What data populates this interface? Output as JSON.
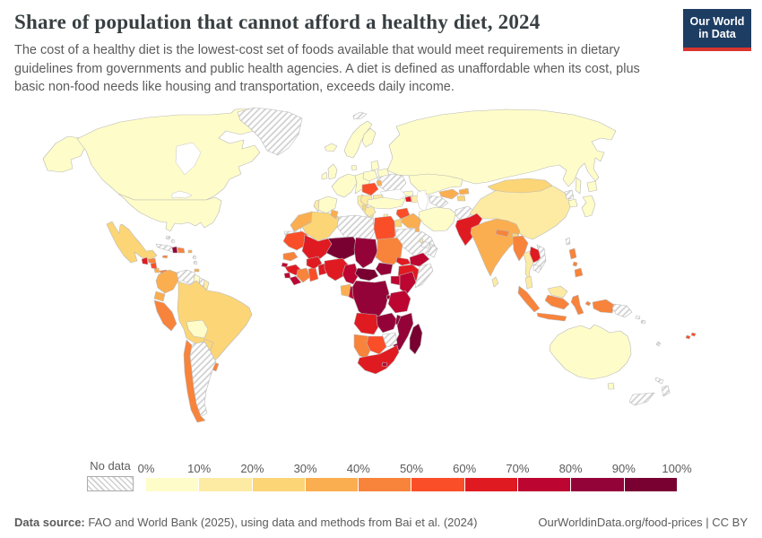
{
  "header": {
    "title": "Share of population that cannot afford a healthy diet, 2024",
    "subtitle": "The cost of a healthy diet is the lowest-cost set of foods available that would meet requirements in dietary guidelines from governments and public health agencies. A diet is defined as unaffordable when its cost, plus basic non-food needs like housing and transportation, exceeds daily income.",
    "logo_line1": "Our World",
    "logo_line2": "in Data"
  },
  "legend": {
    "no_data_label": "No data",
    "tick_labels": [
      "0%",
      "10%",
      "20%",
      "30%",
      "40%",
      "50%",
      "60%",
      "70%",
      "80%",
      "90%",
      "100%"
    ]
  },
  "footer": {
    "source_label": "Data source:",
    "source_text": " FAO and World Bank (2025), using data and methods from Bai et al. (2024)",
    "link_text": "OurWorldinData.org/food-prices",
    "separator": " | ",
    "license_text": "CC BY"
  },
  "chart_data": {
    "type": "choropleth",
    "title": "Share of population that cannot afford a healthy diet, 2024",
    "year": 2024,
    "unit": "%",
    "legend_position": "bottom",
    "no_data_style": "diagonal-hatch",
    "bins": [
      {
        "range": "0-10%",
        "color": "#fefcc8"
      },
      {
        "range": "10-20%",
        "color": "#fdeba4"
      },
      {
        "range": "20-30%",
        "color": "#fcd577"
      },
      {
        "range": "30-40%",
        "color": "#fbae50"
      },
      {
        "range": "40-50%",
        "color": "#f8833b"
      },
      {
        "range": "50-60%",
        "color": "#fa4e29"
      },
      {
        "range": "60-70%",
        "color": "#e01a21"
      },
      {
        "range": "70-80%",
        "color": "#bc0531"
      },
      {
        "range": "80-90%",
        "color": "#940338"
      },
      {
        "range": "90-100%",
        "color": "#790132"
      }
    ],
    "countries": [
      {
        "name": "United States",
        "bin": "0-10%"
      },
      {
        "name": "Canada",
        "bin": "0-10%"
      },
      {
        "name": "Greenland",
        "bin": "No data"
      },
      {
        "name": "Svalbard",
        "bin": "No data"
      },
      {
        "name": "Mexico",
        "bin": "20-30%"
      },
      {
        "name": "Guatemala",
        "bin": "60-70%"
      },
      {
        "name": "Honduras",
        "bin": "40-50%"
      },
      {
        "name": "Nicaragua",
        "bin": "50-60%"
      },
      {
        "name": "Costa Rica",
        "bin": "30-40%"
      },
      {
        "name": "Panama",
        "bin": "40-50%"
      },
      {
        "name": "Cuba",
        "bin": "No data"
      },
      {
        "name": "Jamaica",
        "bin": "40-50%"
      },
      {
        "name": "Haiti",
        "bin": "80-90%"
      },
      {
        "name": "Dominican Republic",
        "bin": "40-50%"
      },
      {
        "name": "Puerto Rico",
        "bin": "30-40%"
      },
      {
        "name": "Bahamas",
        "bin": "No data"
      },
      {
        "name": "Lesser Antilles",
        "bin": "No data"
      },
      {
        "name": "Trinidad and Tobago",
        "bin": "30-40%"
      },
      {
        "name": "Colombia",
        "bin": "30-40%"
      },
      {
        "name": "Venezuela",
        "bin": "No data"
      },
      {
        "name": "Guyana",
        "bin": "0-10%"
      },
      {
        "name": "Suriname",
        "bin": "No data"
      },
      {
        "name": "French Guiana",
        "bin": "10-20%"
      },
      {
        "name": "Ecuador",
        "bin": "30-40%"
      },
      {
        "name": "Peru",
        "bin": "40-50%"
      },
      {
        "name": "Brazil",
        "bin": "20-30%"
      },
      {
        "name": "Bolivia",
        "bin": "0-10%"
      },
      {
        "name": "Paraguay",
        "bin": "20-30%"
      },
      {
        "name": "Uruguay",
        "bin": "40-50%"
      },
      {
        "name": "Chile",
        "bin": "40-50%"
      },
      {
        "name": "Argentina",
        "bin": "No data"
      },
      {
        "name": "Iceland",
        "bin": "0-10%"
      },
      {
        "name": "United Kingdom",
        "bin": "0-10%"
      },
      {
        "name": "Ireland",
        "bin": "0-10%"
      },
      {
        "name": "Norway & Sweden",
        "bin": "0-10%"
      },
      {
        "name": "Finland",
        "bin": "0-10%"
      },
      {
        "name": "Denmark",
        "bin": "0-10%"
      },
      {
        "name": "France",
        "bin": "0-10%"
      },
      {
        "name": "Germany",
        "bin": "0-10%"
      },
      {
        "name": "Spain",
        "bin": "0-10%"
      },
      {
        "name": "Portugal",
        "bin": "10-20%"
      },
      {
        "name": "Italy",
        "bin": "10-20%"
      },
      {
        "name": "Poland",
        "bin": "0-10%"
      },
      {
        "name": "Baltic States",
        "bin": "0-10%"
      },
      {
        "name": "Belarus",
        "bin": "0-10%"
      },
      {
        "name": "Ukraine",
        "bin": "No data"
      },
      {
        "name": "Romania",
        "bin": "50-60%"
      },
      {
        "name": "Moldova",
        "bin": "30-40%"
      },
      {
        "name": "Balkans",
        "bin": "10-20%"
      },
      {
        "name": "Albania",
        "bin": "20-30%"
      },
      {
        "name": "Bulgaria",
        "bin": "10-20%"
      },
      {
        "name": "Greece",
        "bin": "10-20%"
      },
      {
        "name": "Turkey",
        "bin": "0-10%"
      },
      {
        "name": "Georgia",
        "bin": "0-10%"
      },
      {
        "name": "Armenia",
        "bin": "60-70%"
      },
      {
        "name": "Azerbaijan",
        "bin": "10-20%"
      },
      {
        "name": "Cyprus",
        "bin": "10-20%"
      },
      {
        "name": "Syria",
        "bin": "50-60%"
      },
      {
        "name": "Iraq",
        "bin": "30-40%"
      },
      {
        "name": "Jordan",
        "bin": "20-30%"
      },
      {
        "name": "Israel",
        "bin": "10-20%"
      },
      {
        "name": "Saudi Arabia",
        "bin": "No data"
      },
      {
        "name": "Yemen",
        "bin": "70-80%"
      },
      {
        "name": "Oman",
        "bin": "No data"
      },
      {
        "name": "United Arab Emirates",
        "bin": "No data"
      },
      {
        "name": "Qatar",
        "bin": "10-20%"
      },
      {
        "name": "Kuwait",
        "bin": "30-40%"
      },
      {
        "name": "Iran",
        "bin": "0-10%"
      },
      {
        "name": "Afghanistan",
        "bin": "No data"
      },
      {
        "name": "Turkmenistan",
        "bin": "No data"
      },
      {
        "name": "Uzbekistan",
        "bin": "30-40%"
      },
      {
        "name": "Kyrgyzstan",
        "bin": "30-40%"
      },
      {
        "name": "Tajikistan",
        "bin": "20-30%"
      },
      {
        "name": "Kazakhstan",
        "bin": "0-10%"
      },
      {
        "name": "Russia",
        "bin": "0-10%"
      },
      {
        "name": "Pakistan",
        "bin": "60-70%"
      },
      {
        "name": "India",
        "bin": "30-40%"
      },
      {
        "name": "Nepal",
        "bin": "40-50%"
      },
      {
        "name": "Bhutan",
        "bin": "20-30%"
      },
      {
        "name": "Bangladesh",
        "bin": "40-50%"
      },
      {
        "name": "Sri Lanka",
        "bin": "10-20%"
      },
      {
        "name": "China",
        "bin": "10-20%"
      },
      {
        "name": "Mongolia",
        "bin": "20-30%"
      },
      {
        "name": "North Korea",
        "bin": "No data"
      },
      {
        "name": "South Korea",
        "bin": "0-10%"
      },
      {
        "name": "Japan",
        "bin": "0-10%"
      },
      {
        "name": "Taiwan",
        "bin": "No data"
      },
      {
        "name": "Myanmar",
        "bin": "40-50%"
      },
      {
        "name": "Thailand",
        "bin": "10-20%"
      },
      {
        "name": "Laos",
        "bin": "60-70%"
      },
      {
        "name": "Vietnam",
        "bin": "No data"
      },
      {
        "name": "Cambodia",
        "bin": "No data"
      },
      {
        "name": "Malaysia",
        "bin": "10-20%"
      },
      {
        "name": "Indonesia",
        "bin": "40-50%"
      },
      {
        "name": "Philippines",
        "bin": "40-50%"
      },
      {
        "name": "Papua New Guinea",
        "bin": "No data"
      },
      {
        "name": "Solomon Islands",
        "bin": "No data"
      },
      {
        "name": "Vanuatu",
        "bin": "No data"
      },
      {
        "name": "Fiji",
        "bin": "50-60%"
      },
      {
        "name": "New Caledonia",
        "bin": "No data"
      },
      {
        "name": "Australia",
        "bin": "0-10%"
      },
      {
        "name": "New Zealand",
        "bin": "No data"
      },
      {
        "name": "Morocco",
        "bin": "30-40%"
      },
      {
        "name": "Western Sahara",
        "bin": "No data"
      },
      {
        "name": "Algeria",
        "bin": "20-30%"
      },
      {
        "name": "Tunisia",
        "bin": "30-40%"
      },
      {
        "name": "Libya",
        "bin": "No data"
      },
      {
        "name": "Egypt",
        "bin": "50-60%"
      },
      {
        "name": "Mauritania",
        "bin": "50-60%"
      },
      {
        "name": "Mali",
        "bin": "60-70%"
      },
      {
        "name": "Senegal",
        "bin": "40-50%"
      },
      {
        "name": "Guinea-Bissau",
        "bin": "70-80%"
      },
      {
        "name": "Guinea",
        "bin": "60-70%"
      },
      {
        "name": "Sierra Leone",
        "bin": "70-80%"
      },
      {
        "name": "Liberia",
        "bin": "70-80%"
      },
      {
        "name": "Cote d'Ivoire",
        "bin": "40-50%"
      },
      {
        "name": "Ghana",
        "bin": "50-60%"
      },
      {
        "name": "Burkina Faso",
        "bin": "60-70%"
      },
      {
        "name": "Benin & Togo",
        "bin": "60-70%"
      },
      {
        "name": "Niger",
        "bin": "90-100%"
      },
      {
        "name": "Nigeria",
        "bin": "60-70%"
      },
      {
        "name": "Chad",
        "bin": "80-90%"
      },
      {
        "name": "Sudan",
        "bin": "40-50%"
      },
      {
        "name": "Eritrea",
        "bin": "60-70%"
      },
      {
        "name": "Ethiopia",
        "bin": "60-70%"
      },
      {
        "name": "Somalia",
        "bin": "No data"
      },
      {
        "name": "South Sudan",
        "bin": "80-90%"
      },
      {
        "name": "Central African Republic",
        "bin": "90-100%"
      },
      {
        "name": "Cameroon",
        "bin": "70-80%"
      },
      {
        "name": "Gabon",
        "bin": "30-40%"
      },
      {
        "name": "Congo",
        "bin": "70-80%"
      },
      {
        "name": "Uganda",
        "bin": "70-80%"
      },
      {
        "name": "Kenya",
        "bin": "70-80%"
      },
      {
        "name": "DR Congo",
        "bin": "80-90%"
      },
      {
        "name": "Rwanda & Burundi",
        "bin": "80-90%"
      },
      {
        "name": "Tanzania",
        "bin": "70-80%"
      },
      {
        "name": "Angola",
        "bin": "60-70%"
      },
      {
        "name": "Zambia",
        "bin": "80-90%"
      },
      {
        "name": "Malawi",
        "bin": "80-90%"
      },
      {
        "name": "Mozambique",
        "bin": "80-90%"
      },
      {
        "name": "Zimbabwe",
        "bin": "No data"
      },
      {
        "name": "Botswana",
        "bin": "50-60%"
      },
      {
        "name": "Namibia",
        "bin": "40-50%"
      },
      {
        "name": "South Africa",
        "bin": "60-70%"
      },
      {
        "name": "Lesotho",
        "bin": "70-80%"
      },
      {
        "name": "Madagascar",
        "bin": "90-100%"
      }
    ]
  }
}
